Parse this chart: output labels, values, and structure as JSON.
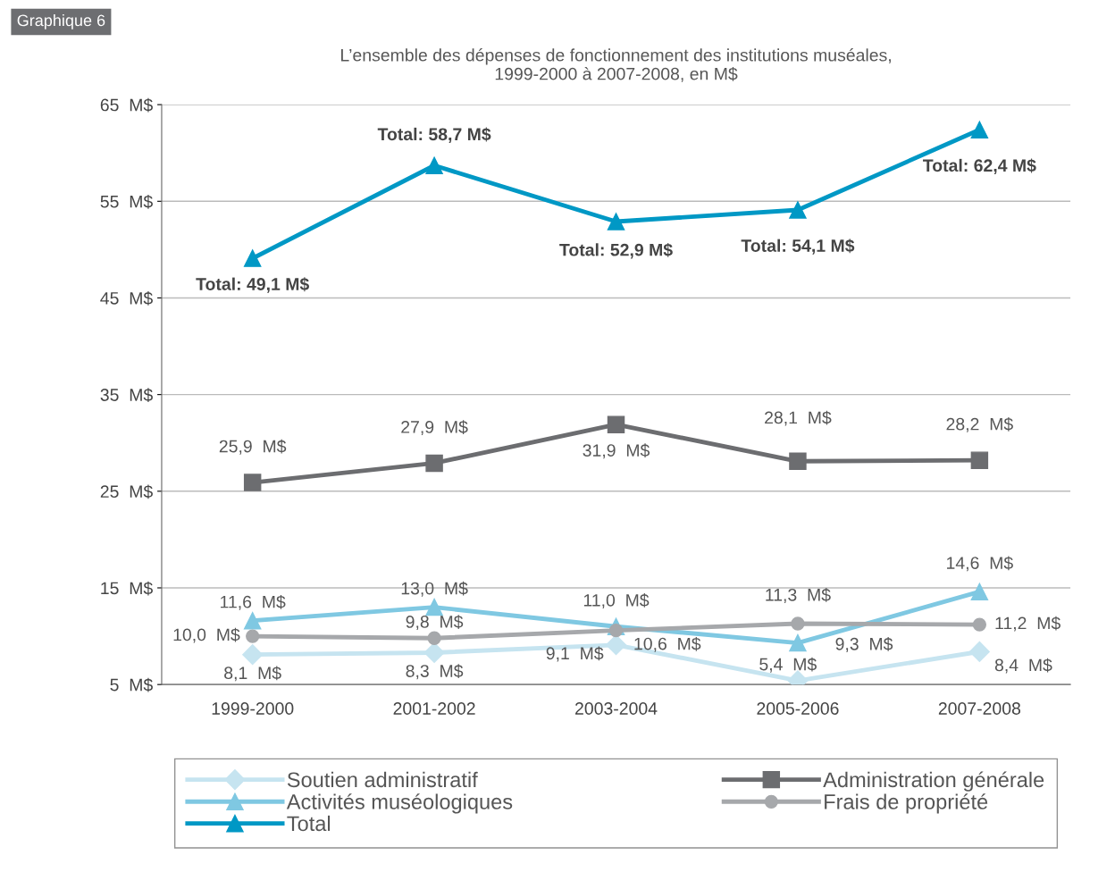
{
  "chart_data": {
    "type": "line",
    "title": "L’ensemble des dépenses de fonctionnement des institutions muséales,\n1999-2000 à 2007-2008, en M$",
    "categories": [
      "1999-2000",
      "2001-2002",
      "2003-2004",
      "2005-2006",
      "2007-2008"
    ],
    "series": [
      {
        "name": "Soutien administratif",
        "color": "#c6e4f0",
        "marker": "diamond",
        "values": [
          8.1,
          8.3,
          9.1,
          5.4,
          8.4
        ],
        "value_labels": [
          "8,1  M$",
          "8,3  M$",
          "9,1  M$",
          "5,4  M$",
          "8,4  M$"
        ]
      },
      {
        "name": "Activités muséologiques",
        "color": "#7fc8e2",
        "marker": "triangle",
        "values": [
          11.6,
          13.0,
          11.0,
          9.3,
          14.6
        ],
        "value_labels": [
          "11,6  M$",
          "13,0  M$",
          "11,0  M$",
          "9,3  M$",
          "14,6  M$"
        ]
      },
      {
        "name": "Total",
        "color": "#0098c5",
        "marker": "triangle",
        "values": [
          49.1,
          58.7,
          52.9,
          54.1,
          62.4
        ],
        "value_labels": [
          "Total: 49,1 M$",
          "Total: 58,7 M$",
          "Total: 52,9 M$",
          "Total: 54,1 M$",
          "Total: 62,4 M$"
        ]
      },
      {
        "name": "Administration générale",
        "color": "#6c6d70",
        "marker": "square",
        "values": [
          25.9,
          27.9,
          31.9,
          28.1,
          28.2
        ],
        "value_labels": [
          "25,9  M$",
          "27,9  M$",
          "31,9  M$",
          "28,1  M$",
          "28,2  M$"
        ]
      },
      {
        "name": "Frais de propriété",
        "color": "#a6a8ab",
        "marker": "circle",
        "values": [
          10.0,
          9.8,
          10.6,
          11.3,
          11.2
        ],
        "value_labels": [
          "10,0  M$",
          "9,8  M$",
          "10,6  M$",
          "11,3  M$",
          "11,2  M$"
        ]
      }
    ],
    "ylim": [
      5,
      65
    ],
    "yticks": [
      {
        "value": 5,
        "label": "5  M$"
      },
      {
        "value": 15,
        "label": "15  M$"
      },
      {
        "value": 25,
        "label": "25  M$"
      },
      {
        "value": 35,
        "label": "35  M$"
      },
      {
        "value": 45,
        "label": "45  M$"
      },
      {
        "value": 55,
        "label": "55  M$"
      },
      {
        "value": 65,
        "label": "65  M$"
      }
    ],
    "grid": "y",
    "legend": "bottom",
    "line_style": "solid",
    "annotations": [
      "Graphique 6"
    ]
  }
}
